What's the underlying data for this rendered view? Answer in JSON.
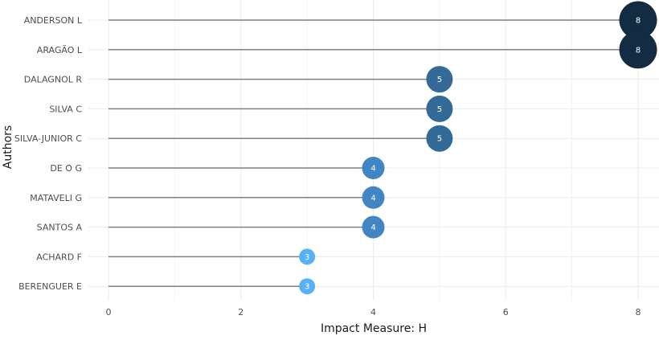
{
  "chart_data": {
    "type": "lollipop",
    "xlabel": "Impact Measure: H",
    "ylabel": "Authors",
    "xlim": [
      0,
      8
    ],
    "x_ticks": [
      0,
      2,
      4,
      6,
      8
    ],
    "grid": true,
    "categories": [
      "ANDERSON L",
      "ARAGÃO L",
      "DALAGNOL R",
      "SILVA C",
      "SILVA-JUNIOR C",
      "DE O G",
      "MATAVELI G",
      "SANTOS A",
      "ACHARD F",
      "BERENGUER E"
    ],
    "values": [
      8,
      8,
      5,
      5,
      5,
      4,
      4,
      4,
      3,
      3
    ],
    "colors": {
      "8": "#132b43",
      "5": "#336a98",
      "4": "#4186c3",
      "3": "#56b1f7",
      "stem": "#808080",
      "grid": "#ebebeb"
    }
  }
}
